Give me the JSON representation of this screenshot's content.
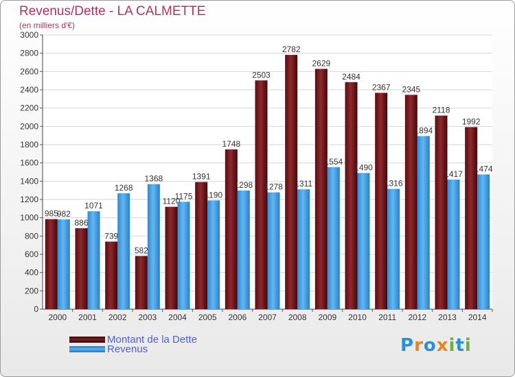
{
  "colors": {
    "dette": "#7a1c20",
    "revenus": "#4ea6e8",
    "title": "#b0335a",
    "legend_text": "#4a5fd8"
  },
  "chart_data": {
    "type": "bar",
    "title": "Revenus/Dette - LA CALMETTE",
    "subtitle": "(en milliers d'€)",
    "categories": [
      "2000",
      "2001",
      "2002",
      "2003",
      "2004",
      "2005",
      "2006",
      "2007",
      "2008",
      "2009",
      "2010",
      "2011",
      "2012",
      "2013",
      "2014"
    ],
    "series": [
      {
        "name": "Montant de la Dette",
        "values": [
          985,
          886,
          739,
          582,
          1120,
          1391,
          1748,
          2503,
          2782,
          2629,
          2484,
          2367,
          2345,
          2118,
          1992
        ]
      },
      {
        "name": "Revenus",
        "values": [
          982,
          1071,
          1268,
          1368,
          1175,
          1190,
          1298,
          1278,
          1311,
          1554,
          1490,
          1316,
          1894,
          1417,
          1474
        ]
      }
    ],
    "ylim": [
      0,
      3000
    ],
    "yticks": [
      0,
      200,
      400,
      600,
      800,
      1000,
      1200,
      1400,
      1600,
      1800,
      2000,
      2200,
      2400,
      2600,
      2800,
      3000
    ],
    "grid": true,
    "legend_position": "bottom-left"
  },
  "legend": {
    "dette_label": "Montant de la Dette",
    "revenus_label": "Revenus"
  },
  "logo": {
    "text": "Proxiti",
    "letter_colors": [
      "#2a8fd6",
      "#e8841f",
      "#2a8fd6",
      "#e8841f",
      "#6bb23a",
      "#2a8fd6",
      "#6bb23a"
    ]
  }
}
